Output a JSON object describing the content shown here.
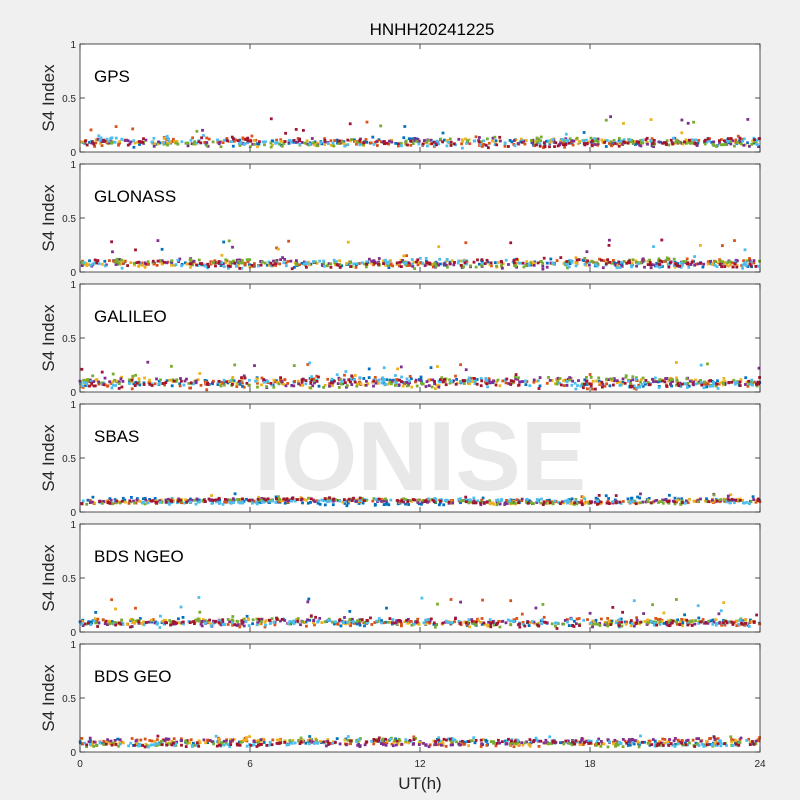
{
  "chart_data": {
    "type": "scatter",
    "title": "HNHH20241225",
    "xlabel": "UT(h)",
    "ylabel": "S4 Index",
    "xlim": [
      0,
      24
    ],
    "ylim": [
      0,
      1
    ],
    "xticks": [
      "0",
      "6",
      "12",
      "18",
      "24"
    ],
    "yticks": [
      "0",
      "0.5",
      "1"
    ],
    "watermark": "IONISE",
    "colors": [
      "#0072BD",
      "#D95319",
      "#EDB120",
      "#7E2F8E",
      "#77AC30",
      "#4DBEEE",
      "#A2142F"
    ],
    "panels": [
      {
        "label": "GPS",
        "baseline": 0.09,
        "spread": 0.03,
        "spike_max": 0.33
      },
      {
        "label": "GLONASS",
        "baseline": 0.08,
        "spread": 0.03,
        "spike_max": 0.3
      },
      {
        "label": "GALILEO",
        "baseline": 0.09,
        "spread": 0.04,
        "spike_max": 0.29
      },
      {
        "label": "SBAS",
        "baseline": 0.1,
        "spread": 0.015,
        "spike_max": 0.17
      },
      {
        "label": "BDS NGEO",
        "baseline": 0.09,
        "spread": 0.03,
        "spike_max": 0.32
      },
      {
        "label": "BDS GEO",
        "baseline": 0.09,
        "spread": 0.02,
        "spike_max": 0.15
      }
    ]
  }
}
